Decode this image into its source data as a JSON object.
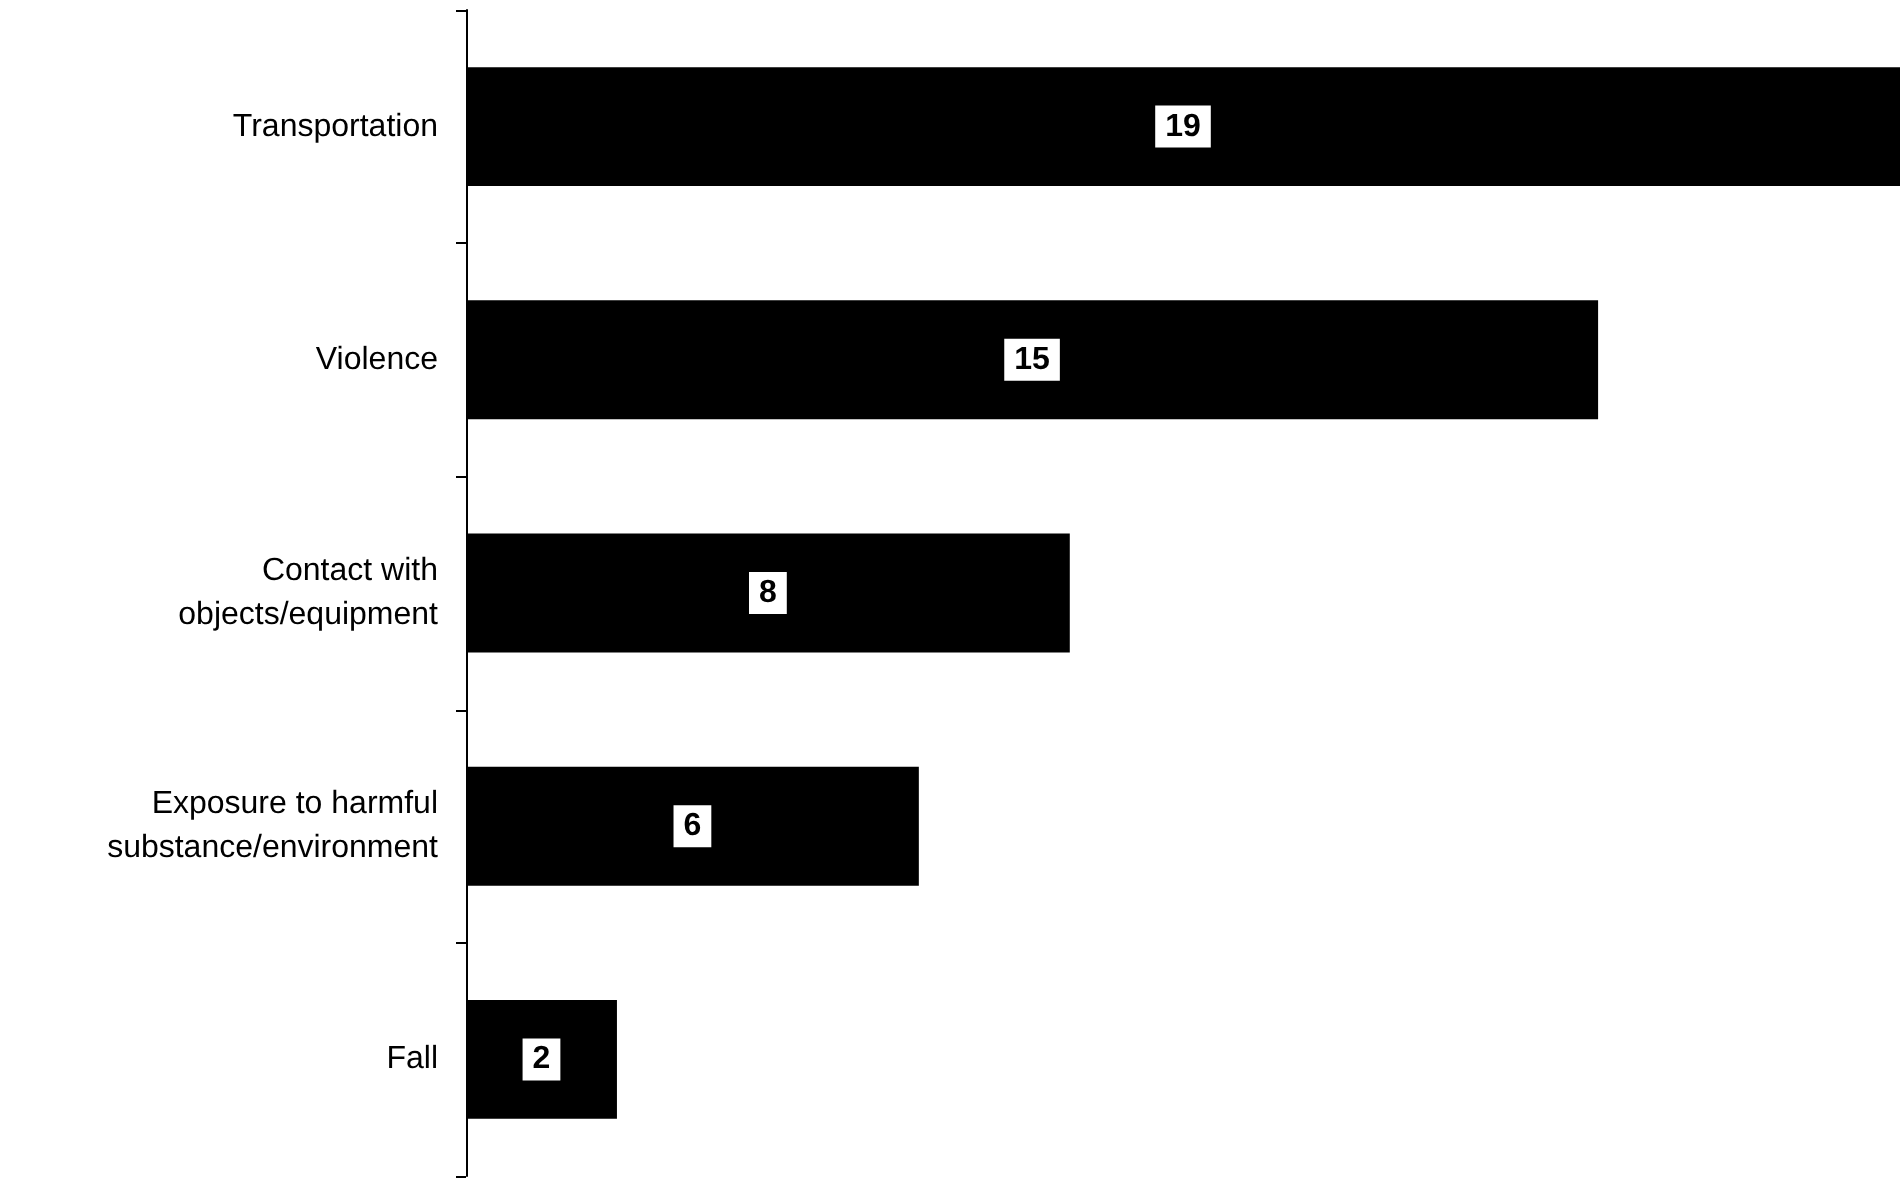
{
  "chart_data": {
    "type": "bar",
    "orientation": "horizontal",
    "categories": [
      "Transportation",
      "Violence",
      "Contact with\nobjects/equipment",
      "Exposure to harmful\nsubstance/environment",
      "Fall"
    ],
    "values": [
      19,
      15,
      8,
      6,
      2
    ],
    "color": "#000000",
    "data_labels": true
  }
}
